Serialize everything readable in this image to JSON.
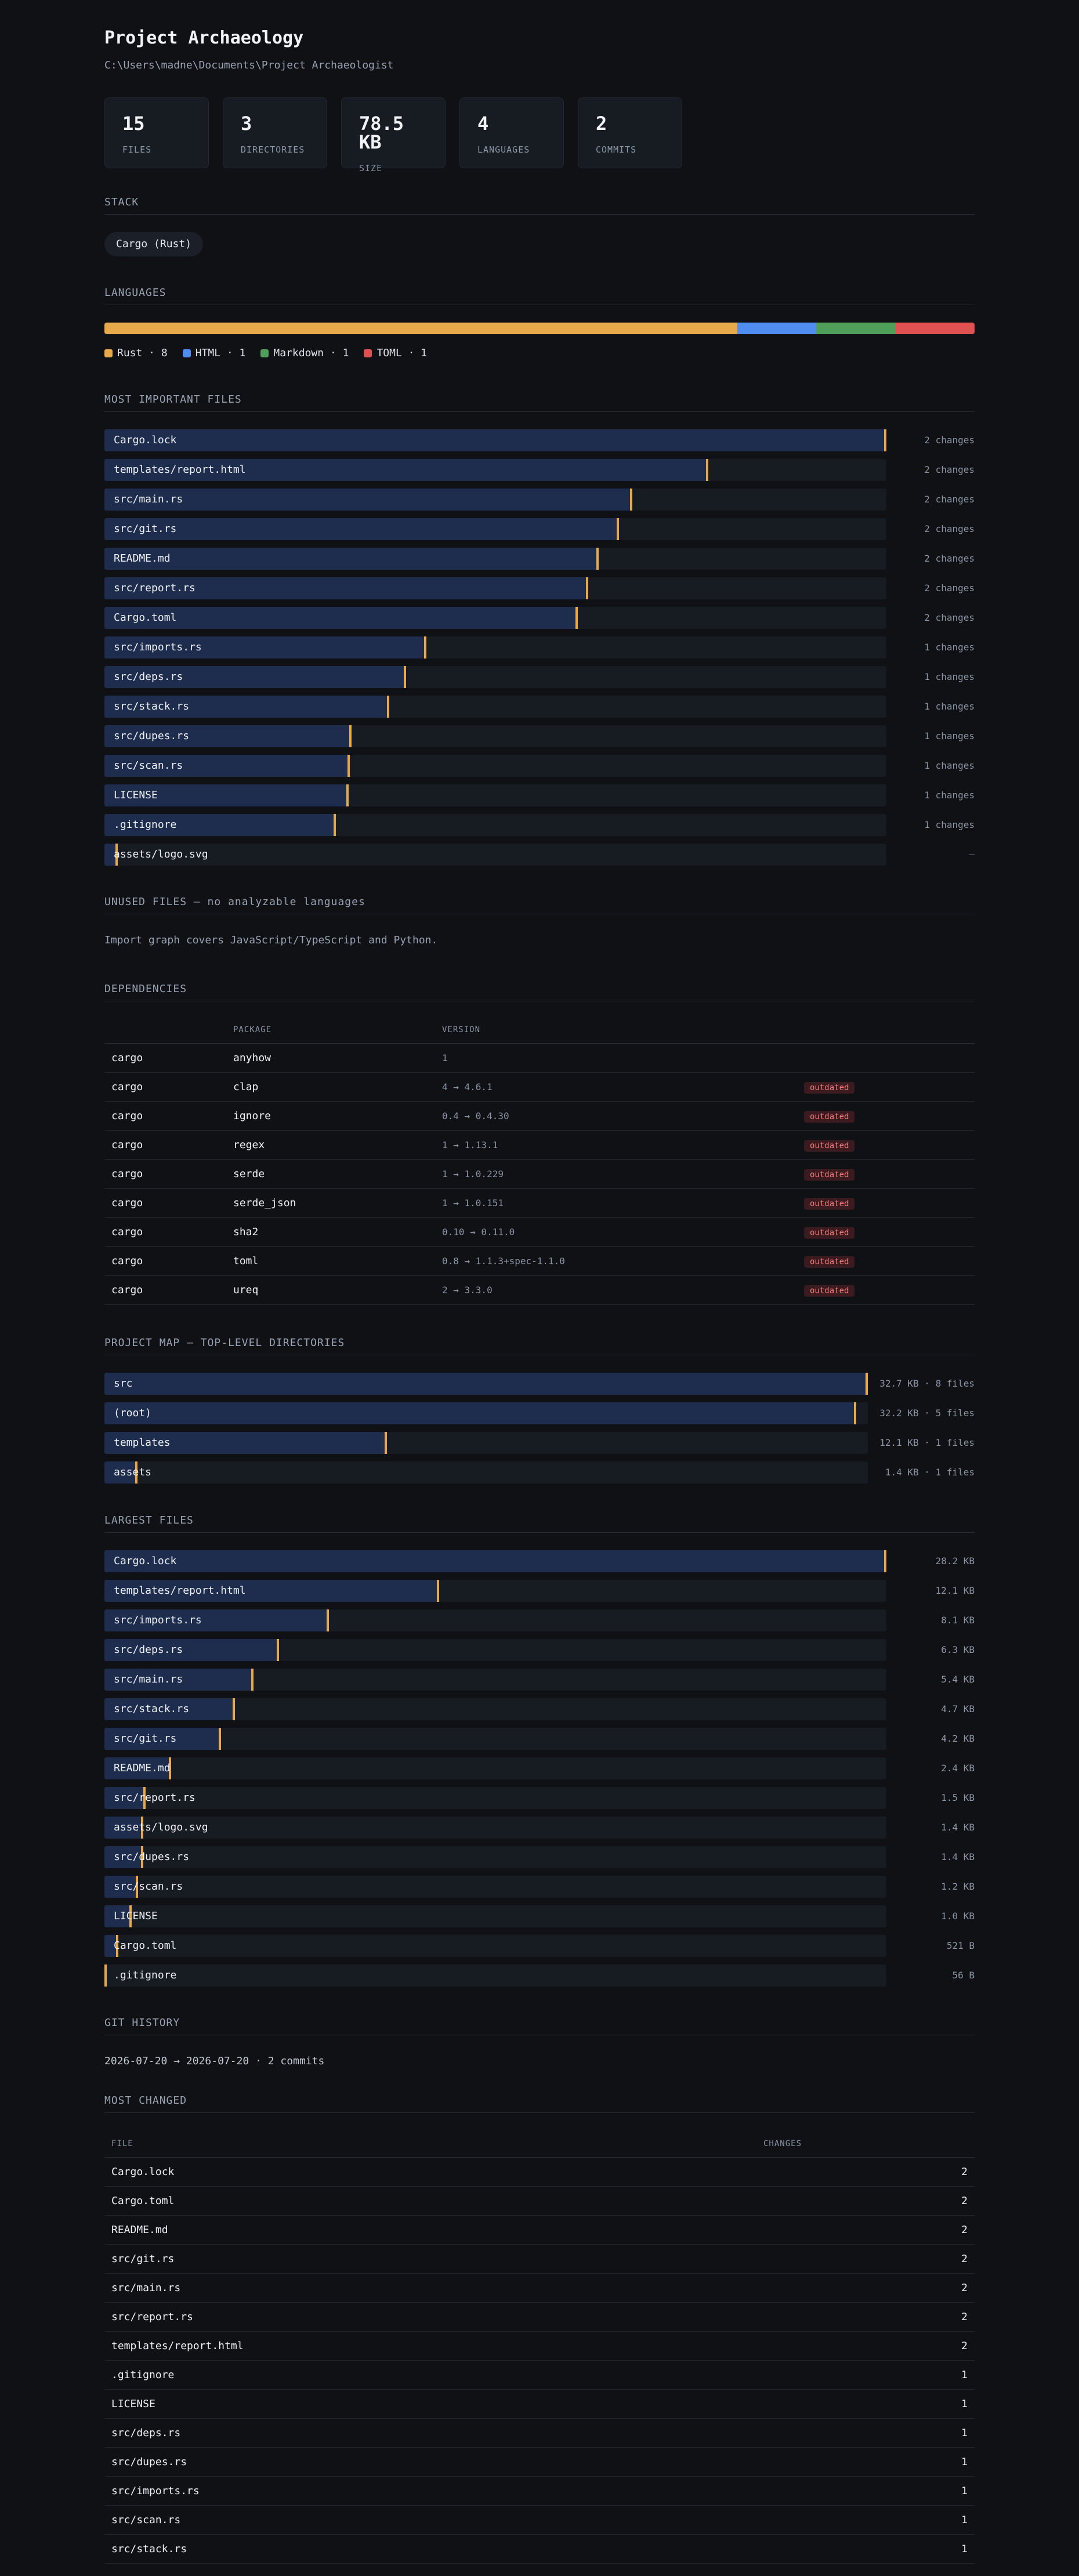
{
  "header": {
    "title": "Project Archaeology",
    "path": "C:\\Users\\madne\\Documents\\Project Archaeologist"
  },
  "stats": [
    {
      "value": "15",
      "label": "FILES"
    },
    {
      "value": "3",
      "label": "DIRECTORIES"
    },
    {
      "value": "78.5 KB",
      "label": "SIZE"
    },
    {
      "value": "4",
      "label": "LANGUAGES"
    },
    {
      "value": "2",
      "label": "COMMITS"
    }
  ],
  "stack": {
    "heading": "STACK",
    "chip": "Cargo (Rust)"
  },
  "languages": {
    "heading": "LANGUAGES",
    "items": [
      {
        "label": "Rust · 8",
        "count": 8,
        "color": "#e8a94a"
      },
      {
        "label": "HTML · 1",
        "count": 1,
        "color": "#4f8ef0"
      },
      {
        "label": "Markdown · 1",
        "count": 1,
        "color": "#4f9f5a"
      },
      {
        "label": "TOML · 1",
        "count": 1,
        "color": "#e05252"
      }
    ]
  },
  "important": {
    "heading": "MOST IMPORTANT FILES",
    "rows": [
      {
        "name": "Cargo.lock",
        "meta": "2 changes",
        "score": 1.0
      },
      {
        "name": "templates/report.html",
        "meta": "2 changes",
        "score": 0.772
      },
      {
        "name": "src/main.rs",
        "meta": "2 changes",
        "score": 0.675
      },
      {
        "name": "src/git.rs",
        "meta": "2 changes",
        "score": 0.658
      },
      {
        "name": "README.md",
        "meta": "2 changes",
        "score": 0.632
      },
      {
        "name": "src/report.rs",
        "meta": "2 changes",
        "score": 0.619
      },
      {
        "name": "Cargo.toml",
        "meta": "2 changes",
        "score": 0.605
      },
      {
        "name": "src/imports.rs",
        "meta": "1 changes",
        "score": 0.412
      },
      {
        "name": "src/deps.rs",
        "meta": "1 changes",
        "score": 0.386
      },
      {
        "name": "src/stack.rs",
        "meta": "1 changes",
        "score": 0.364
      },
      {
        "name": "src/dupes.rs",
        "meta": "1 changes",
        "score": 0.316
      },
      {
        "name": "src/scan.rs",
        "meta": "1 changes",
        "score": 0.314
      },
      {
        "name": "LICENSE",
        "meta": "1 changes",
        "score": 0.312
      },
      {
        "name": ".gitignore",
        "meta": "1 changes",
        "score": 0.296
      },
      {
        "name": "assets/logo.svg",
        "meta": "—",
        "score": 0.017
      }
    ]
  },
  "unused": {
    "heading": "UNUSED FILES — no analyzable languages",
    "note": "Import graph covers JavaScript/TypeScript and Python."
  },
  "dependencies": {
    "heading": "DEPENDENCIES",
    "columns": [
      "",
      "PACKAGE",
      "VERSION",
      ""
    ],
    "rows": [
      {
        "eco": "cargo",
        "pkg": "anyhow",
        "ver": "1",
        "status": ""
      },
      {
        "eco": "cargo",
        "pkg": "clap",
        "ver": "4 → 4.6.1",
        "status": "outdated"
      },
      {
        "eco": "cargo",
        "pkg": "ignore",
        "ver": "0.4 → 0.4.30",
        "status": "outdated"
      },
      {
        "eco": "cargo",
        "pkg": "regex",
        "ver": "1 → 1.13.1",
        "status": "outdated"
      },
      {
        "eco": "cargo",
        "pkg": "serde",
        "ver": "1 → 1.0.229",
        "status": "outdated"
      },
      {
        "eco": "cargo",
        "pkg": "serde_json",
        "ver": "1 → 1.0.151",
        "status": "outdated"
      },
      {
        "eco": "cargo",
        "pkg": "sha2",
        "ver": "0.10 → 0.11.0",
        "status": "outdated"
      },
      {
        "eco": "cargo",
        "pkg": "toml",
        "ver": "0.8 → 1.1.3+spec-1.1.0",
        "status": "outdated"
      },
      {
        "eco": "cargo",
        "pkg": "ureq",
        "ver": "2 → 3.3.0",
        "status": "outdated"
      }
    ]
  },
  "project_map": {
    "heading": "PROJECT MAP — TOP-LEVEL DIRECTORIES",
    "rows": [
      {
        "name": "src",
        "meta": "32.7 KB · 8 files",
        "score": 1.0
      },
      {
        "name": "(root)",
        "meta": "32.2 KB · 5 files",
        "score": 0.985
      },
      {
        "name": "templates",
        "meta": "12.1 KB · 1 files",
        "score": 0.37
      },
      {
        "name": "assets",
        "meta": "1.4 KB · 1 files",
        "score": 0.043
      }
    ]
  },
  "largest": {
    "heading": "LARGEST FILES",
    "rows": [
      {
        "name": "Cargo.lock",
        "meta": "28.2 KB",
        "score": 1.0
      },
      {
        "name": "templates/report.html",
        "meta": "12.1 KB",
        "score": 0.428
      },
      {
        "name": "src/imports.rs",
        "meta": "8.1 KB",
        "score": 0.287
      },
      {
        "name": "src/deps.rs",
        "meta": "6.3 KB",
        "score": 0.223
      },
      {
        "name": "src/main.rs",
        "meta": "5.4 KB",
        "score": 0.191
      },
      {
        "name": "src/stack.rs",
        "meta": "4.7 KB",
        "score": 0.167
      },
      {
        "name": "src/git.rs",
        "meta": "4.2 KB",
        "score": 0.149
      },
      {
        "name": "README.md",
        "meta": "2.4 KB",
        "score": 0.085
      },
      {
        "name": "src/report.rs",
        "meta": "1.5 KB",
        "score": 0.053
      },
      {
        "name": "assets/logo.svg",
        "meta": "1.4 KB",
        "score": 0.05
      },
      {
        "name": "src/dupes.rs",
        "meta": "1.4 KB",
        "score": 0.05
      },
      {
        "name": "src/scan.rs",
        "meta": "1.2 KB",
        "score": 0.043
      },
      {
        "name": "LICENSE",
        "meta": "1.0 KB",
        "score": 0.035
      },
      {
        "name": "Cargo.toml",
        "meta": "521 B",
        "score": 0.018
      },
      {
        "name": ".gitignore",
        "meta": "56 B",
        "score": 0.002
      }
    ]
  },
  "git": {
    "heading": "GIT HISTORY",
    "summary": "2026-07-20 → 2026-07-20 · 2 commits"
  },
  "most_changed": {
    "heading": "MOST CHANGED",
    "columns": [
      "FILE",
      "CHANGES"
    ],
    "rows": [
      {
        "file": "Cargo.lock",
        "changes": "2"
      },
      {
        "file": "Cargo.toml",
        "changes": "2"
      },
      {
        "file": "README.md",
        "changes": "2"
      },
      {
        "file": "src/git.rs",
        "changes": "2"
      },
      {
        "file": "src/main.rs",
        "changes": "2"
      },
      {
        "file": "src/report.rs",
        "changes": "2"
      },
      {
        "file": "templates/report.html",
        "changes": "2"
      },
      {
        "file": ".gitignore",
        "changes": "1"
      },
      {
        "file": "LICENSE",
        "changes": "1"
      },
      {
        "file": "src/deps.rs",
        "changes": "1"
      },
      {
        "file": "src/dupes.rs",
        "changes": "1"
      },
      {
        "file": "src/imports.rs",
        "changes": "1"
      },
      {
        "file": "src/scan.rs",
        "changes": "1"
      },
      {
        "file": "src/stack.rs",
        "changes": "1"
      }
    ]
  }
}
